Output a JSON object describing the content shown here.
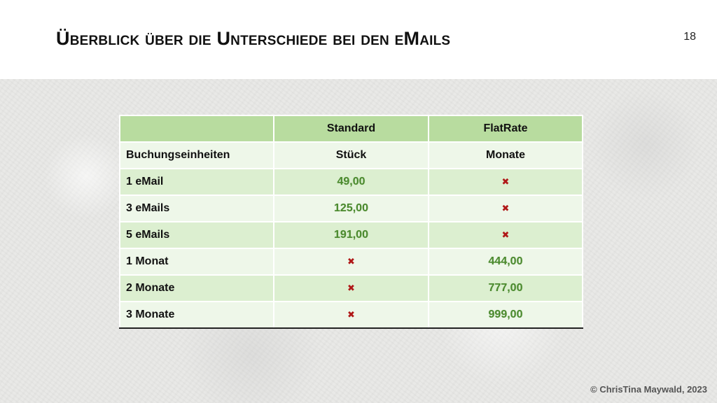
{
  "slide": {
    "title": "Überblick über die Unterschiede bei den eMails",
    "number": "18",
    "footer": "© ChrisTina Maywald, 2023"
  },
  "table": {
    "headers": [
      "",
      "Standard",
      "FlatRate"
    ],
    "rows": [
      {
        "label": "Buchungseinheiten",
        "standard": "Stück",
        "flatrate": "Monate"
      },
      {
        "label": "1 eMail",
        "standard": "49,00",
        "flatrate": "✖"
      },
      {
        "label": "3 eMails",
        "standard": "125,00",
        "flatrate": "✖"
      },
      {
        "label": "5 eMails",
        "standard": "191,00",
        "flatrate": "✖"
      },
      {
        "label": "1 Monat",
        "standard": "✖",
        "flatrate": "444,00"
      },
      {
        "label": "2 Monate",
        "standard": "✖",
        "flatrate": "777,00"
      },
      {
        "label": "3 Monate",
        "standard": "✖",
        "flatrate": "999,00"
      }
    ]
  },
  "colors": {
    "header_green": "#b8dc9f",
    "row_even": "#dcefd0",
    "row_odd": "#eef7e9",
    "price_green": "#4b8a2e",
    "cross_red": "#b01818"
  },
  "icons": {
    "not_available": "cross-mark-icon"
  }
}
